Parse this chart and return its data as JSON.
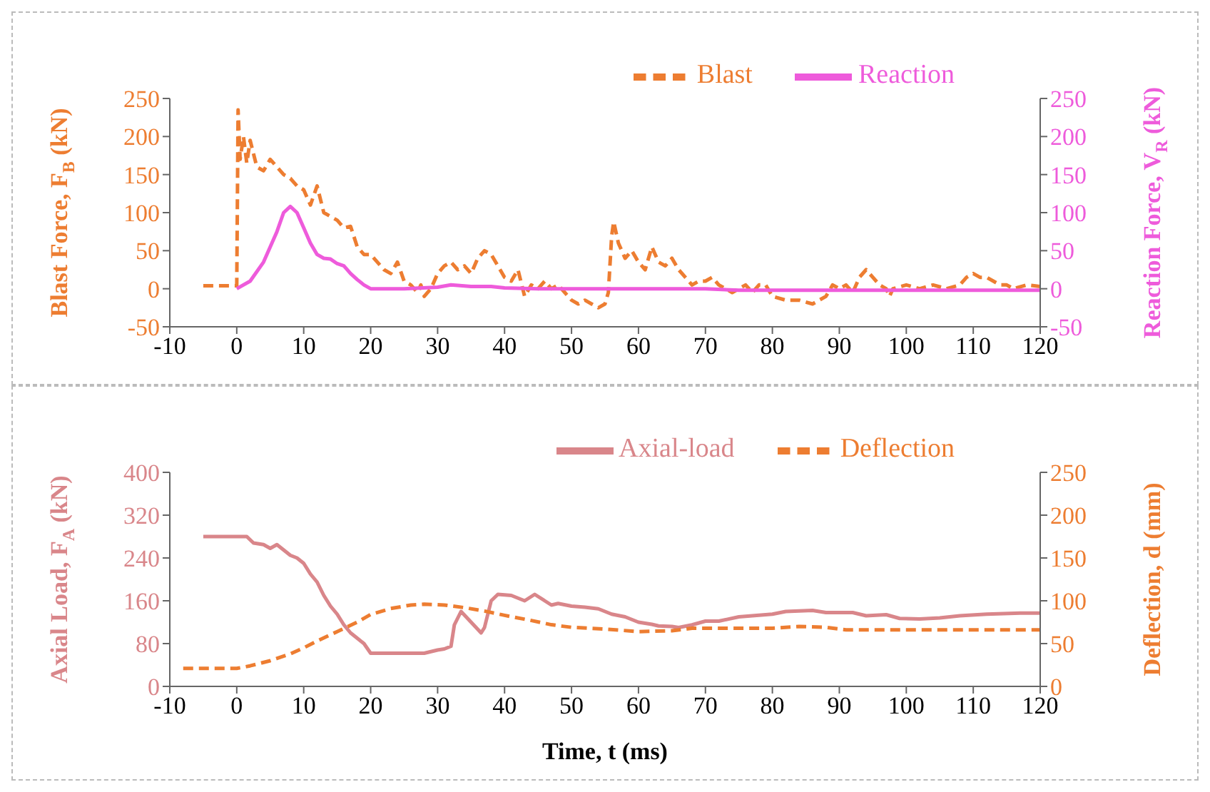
{
  "chart_data": [
    {
      "type": "line",
      "ylabel": "Blast Force, F$_{B}$ (kN)",
      "y2label": "Reaction Force, V$_{R}$ (kN)",
      "xlim": [
        -10,
        120
      ],
      "xticks": [
        -10,
        0,
        10,
        20,
        30,
        40,
        50,
        60,
        70,
        80,
        90,
        100,
        110,
        120
      ],
      "ylim": [
        -50,
        250
      ],
      "yticks": [
        -50,
        0,
        50,
        100,
        150,
        200,
        250
      ],
      "y2lim": [
        -50,
        250
      ],
      "y2ticks": [
        -50,
        0,
        50,
        100,
        150,
        200,
        250
      ],
      "legend": "top right",
      "series": [
        {
          "name": "Blast",
          "color": "#ed7d31",
          "line_style": "dashed",
          "x": [
            -5,
            0,
            0.2,
            0.5,
            1,
            1.5,
            2,
            3,
            4,
            5,
            6,
            7,
            8,
            9,
            10,
            11,
            12,
            13,
            14,
            15,
            16,
            17,
            18,
            19,
            20,
            21,
            22,
            23,
            24,
            25,
            26,
            27,
            27.5,
            28,
            29,
            30,
            31,
            32,
            33,
            34,
            35,
            36,
            37,
            38,
            39,
            40,
            41,
            42,
            43,
            44,
            45,
            46,
            47,
            48,
            49,
            50,
            51,
            52,
            53,
            54,
            55,
            55.5,
            56,
            56.3,
            57,
            58,
            59,
            60,
            61,
            62,
            63,
            64,
            65,
            66,
            67,
            68,
            69,
            70,
            71,
            72,
            73,
            74,
            75,
            76,
            77,
            78,
            79,
            80,
            82,
            84,
            86,
            88,
            89,
            90,
            91,
            92,
            93,
            94,
            95,
            96,
            97,
            97.5,
            98,
            100,
            102,
            104,
            106,
            108,
            109,
            110,
            111,
            112,
            113,
            114,
            115,
            116,
            118,
            120
          ],
          "values": [
            4,
            4,
            235,
            170,
            200,
            165,
            195,
            160,
            155,
            170,
            160,
            150,
            145,
            135,
            130,
            110,
            135,
            100,
            95,
            90,
            80,
            82,
            55,
            45,
            45,
            35,
            25,
            20,
            35,
            10,
            5,
            -5,
            5,
            -10,
            0,
            20,
            30,
            35,
            25,
            30,
            20,
            40,
            50,
            45,
            30,
            15,
            10,
            25,
            -10,
            5,
            0,
            10,
            0,
            5,
            -5,
            -15,
            -20,
            -15,
            -20,
            -25,
            -20,
            -5,
            70,
            88,
            60,
            40,
            50,
            35,
            25,
            55,
            35,
            30,
            40,
            25,
            15,
            5,
            10,
            10,
            15,
            5,
            0,
            -5,
            0,
            5,
            -5,
            5,
            5,
            -10,
            -15,
            -15,
            -20,
            -10,
            5,
            0,
            5,
            -5,
            15,
            25,
            15,
            5,
            0,
            -10,
            0,
            5,
            0,
            5,
            0,
            5,
            15,
            20,
            15,
            15,
            10,
            5,
            5,
            0,
            5,
            3
          ]
        },
        {
          "name": "Reaction",
          "color": "#ee5bdb",
          "line_style": "solid",
          "axis": "y2",
          "x": [
            0,
            2,
            4,
            6,
            7,
            8,
            9,
            10,
            11,
            12,
            13,
            14,
            15,
            16,
            17,
            18,
            19,
            20,
            25,
            30,
            32,
            35,
            38,
            40,
            45,
            50,
            60,
            70,
            75,
            80,
            120
          ],
          "values": [
            0,
            10,
            35,
            75,
            100,
            108,
            100,
            80,
            60,
            45,
            40,
            39,
            33,
            30,
            20,
            12,
            5,
            0,
            0,
            2,
            5,
            3,
            3,
            1,
            0,
            0,
            0,
            0,
            -2,
            -2,
            -2
          ]
        }
      ]
    },
    {
      "type": "line",
      "xlabel": "Time, t (ms)",
      "ylabel": "Axial Load, F$_{A}$ (kN)",
      "y2label": "Deflection, d (mm)",
      "xlim": [
        -10,
        120
      ],
      "xticks": [
        -10,
        0,
        10,
        20,
        30,
        40,
        50,
        60,
        70,
        80,
        90,
        100,
        110,
        120
      ],
      "ylim": [
        0,
        400
      ],
      "yticks": [
        0,
        80,
        160,
        240,
        320,
        400
      ],
      "y2lim": [
        0,
        250
      ],
      "y2ticks": [
        0,
        50,
        100,
        150,
        200,
        250
      ],
      "legend": "top right",
      "series": [
        {
          "name": "Axial-load",
          "color": "#d9868a",
          "line_style": "solid",
          "x": [
            -5,
            0,
            1.5,
            2.5,
            4,
            5,
            6,
            7,
            8,
            9,
            10,
            11,
            12,
            13,
            14,
            15,
            16,
            17,
            18,
            19,
            20,
            25,
            28,
            29,
            30,
            31,
            32,
            32.5,
            33.5,
            35,
            36.5,
            37,
            38,
            39,
            41,
            43,
            44.5,
            46,
            47,
            48,
            50,
            52,
            54,
            56,
            58,
            60,
            62,
            63,
            65,
            66,
            68,
            70,
            72,
            75,
            80,
            82,
            86,
            88,
            92,
            94,
            97,
            99,
            102,
            105,
            108,
            112,
            117,
            120
          ],
          "values": [
            280,
            280,
            280,
            268,
            265,
            258,
            265,
            255,
            245,
            240,
            230,
            210,
            195,
            170,
            150,
            135,
            115,
            100,
            90,
            80,
            62,
            62,
            62,
            65,
            68,
            70,
            75,
            115,
            140,
            120,
            100,
            110,
            160,
            172,
            170,
            160,
            172,
            160,
            152,
            155,
            150,
            148,
            145,
            135,
            130,
            120,
            116,
            113,
            112,
            110,
            115,
            122,
            122,
            130,
            135,
            140,
            142,
            138,
            138,
            132,
            134,
            127,
            126,
            128,
            132,
            135,
            137,
            137
          ]
        },
        {
          "name": "Deflection",
          "color": "#ed7d31",
          "line_style": "dashed",
          "axis": "y2",
          "x": [
            -8,
            0,
            2,
            5,
            8,
            10,
            12,
            15,
            18,
            20,
            23,
            26,
            28,
            31,
            34,
            37,
            40,
            44,
            47,
            50,
            55,
            60,
            65,
            68,
            75,
            80,
            84,
            88,
            91,
            100,
            120
          ],
          "values": [
            21,
            21,
            24,
            30,
            38,
            45,
            53,
            64,
            75,
            84,
            91,
            95,
            96,
            95,
            92,
            88,
            83,
            77,
            72,
            69,
            67,
            64,
            65,
            68,
            68,
            68,
            70,
            69,
            66,
            66,
            66
          ]
        }
      ]
    }
  ]
}
